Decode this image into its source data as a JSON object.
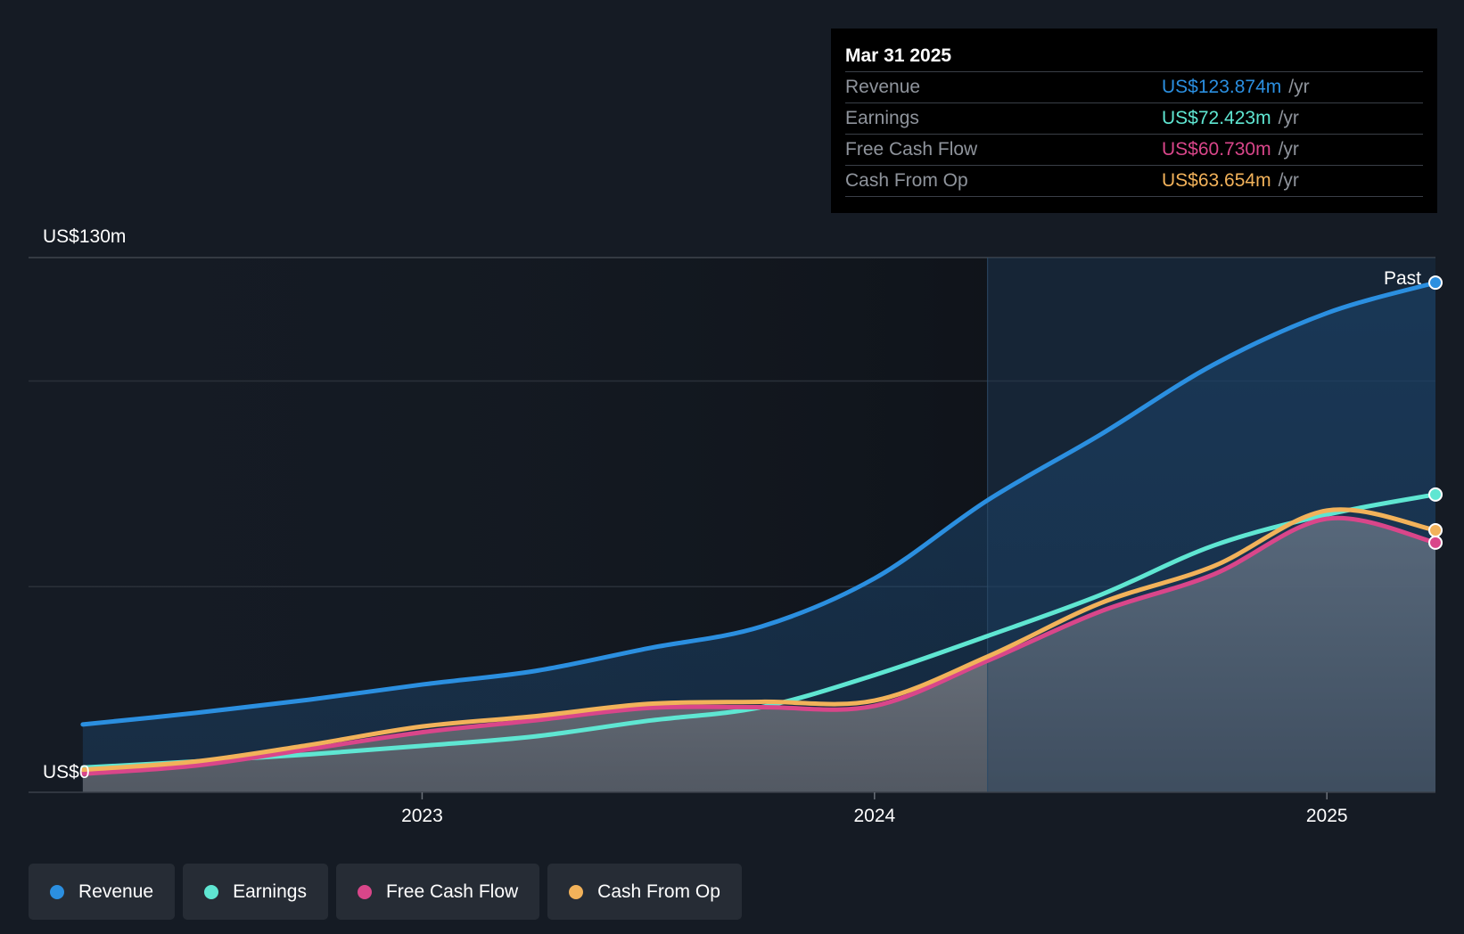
{
  "tooltip": {
    "date": "Mar 31 2025",
    "rows": [
      {
        "label": "Revenue",
        "value": "US$123.874m",
        "unit": "/yr",
        "color": "#2b8fe0"
      },
      {
        "label": "Earnings",
        "value": "US$72.423m",
        "unit": "/yr",
        "color": "#5fe6d2"
      },
      {
        "label": "Free Cash Flow",
        "value": "US$60.730m",
        "unit": "/yr",
        "color": "#d9468a"
      },
      {
        "label": "Cash From Op",
        "value": "US$63.654m",
        "unit": "/yr",
        "color": "#f2b25a"
      }
    ]
  },
  "legend": [
    {
      "label": "Revenue",
      "color": "#2b8fe0"
    },
    {
      "label": "Earnings",
      "color": "#5fe6d2"
    },
    {
      "label": "Free Cash Flow",
      "color": "#d9468a"
    },
    {
      "label": "Cash From Op",
      "color": "#f2b25a"
    }
  ],
  "chart_data": {
    "type": "line",
    "y_top_label": "US$130m",
    "y_bottom_label": "US$0",
    "past_label": "Past",
    "ylim": [
      0,
      130
    ],
    "x_ticks": [
      {
        "label": "2023",
        "x": 2023.0
      },
      {
        "label": "2024",
        "x": 2024.0
      },
      {
        "label": "2025",
        "x": 2025.0
      }
    ],
    "xlim": [
      2022.13,
      2025.24
    ],
    "x_start": 2022.25,
    "x_end": 2025.24,
    "forecast_boundary": 2024.25,
    "series": [
      {
        "name": "Revenue",
        "color": "#2b8fe0",
        "points": [
          [
            2022.25,
            16.5
          ],
          [
            2022.5,
            19.3
          ],
          [
            2022.75,
            22.5
          ],
          [
            2023.0,
            26.2
          ],
          [
            2023.25,
            29.5
          ],
          [
            2023.5,
            35.0
          ],
          [
            2023.75,
            40.3
          ],
          [
            2024.0,
            52.0
          ],
          [
            2024.25,
            71.0
          ],
          [
            2024.5,
            87.0
          ],
          [
            2024.75,
            104.0
          ],
          [
            2025.0,
            116.5
          ],
          [
            2025.24,
            123.9
          ]
        ]
      },
      {
        "name": "Earnings",
        "color": "#5fe6d2",
        "points": [
          [
            2022.25,
            6.0
          ],
          [
            2022.5,
            7.5
          ],
          [
            2022.75,
            9.2
          ],
          [
            2023.0,
            11.3
          ],
          [
            2023.25,
            13.6
          ],
          [
            2023.5,
            17.4
          ],
          [
            2023.75,
            20.7
          ],
          [
            2024.0,
            28.5
          ],
          [
            2024.25,
            38.0
          ],
          [
            2024.5,
            48.0
          ],
          [
            2024.75,
            60.0
          ],
          [
            2025.0,
            67.5
          ],
          [
            2025.24,
            72.4
          ]
        ]
      },
      {
        "name": "Free Cash Flow",
        "color": "#d9468a",
        "points": [
          [
            2022.25,
            4.5
          ],
          [
            2022.5,
            6.5
          ],
          [
            2022.75,
            10.5
          ],
          [
            2023.0,
            14.6
          ],
          [
            2023.25,
            17.5
          ],
          [
            2023.5,
            20.5
          ],
          [
            2023.75,
            20.7
          ],
          [
            2024.0,
            21.0
          ],
          [
            2024.25,
            32.0
          ],
          [
            2024.5,
            44.0
          ],
          [
            2024.75,
            53.0
          ],
          [
            2025.0,
            66.5
          ],
          [
            2025.24,
            60.7
          ]
        ]
      },
      {
        "name": "Cash From Op",
        "color": "#f2b25a",
        "points": [
          [
            2022.25,
            5.5
          ],
          [
            2022.5,
            7.5
          ],
          [
            2022.75,
            11.5
          ],
          [
            2023.0,
            16.0
          ],
          [
            2023.25,
            18.5
          ],
          [
            2023.5,
            21.5
          ],
          [
            2023.75,
            22.0
          ],
          [
            2024.0,
            22.3
          ],
          [
            2024.25,
            33.0
          ],
          [
            2024.5,
            46.0
          ],
          [
            2024.75,
            55.0
          ],
          [
            2025.0,
            68.5
          ],
          [
            2025.24,
            63.7
          ]
        ]
      }
    ]
  }
}
